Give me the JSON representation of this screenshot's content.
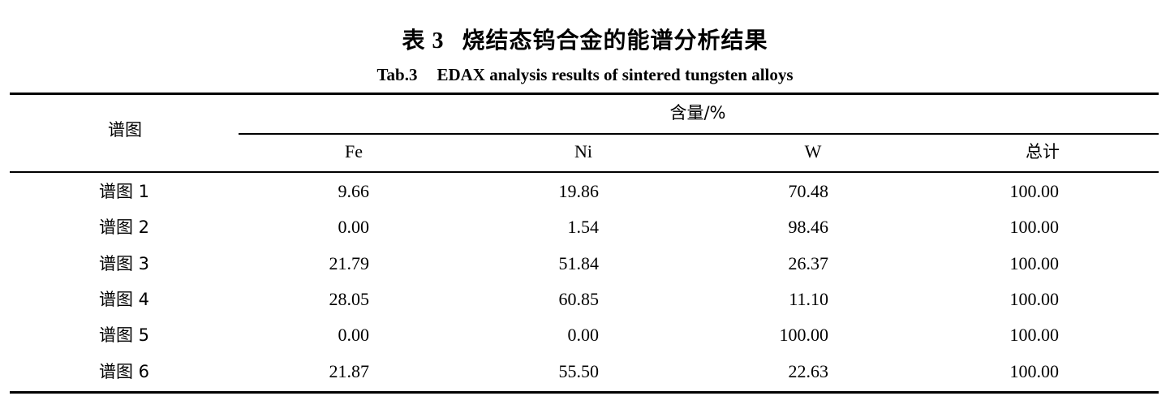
{
  "title": {
    "cn_number": "表 3",
    "cn_text": "烧结态钨合金的能谱分析结果",
    "en_number": "Tab.3",
    "en_text": "EDAX analysis results of sintered tungsten alloys"
  },
  "table": {
    "row_header": "谱图",
    "group_header": "含量/%",
    "columns": [
      "Fe",
      "Ni",
      "W",
      "总计"
    ],
    "rows": [
      {
        "label": "谱图 1",
        "values": [
          "9.66",
          "19.86",
          "70.48",
          "100.00"
        ]
      },
      {
        "label": "谱图 2",
        "values": [
          "0.00",
          "1.54",
          "98.46",
          "100.00"
        ]
      },
      {
        "label": "谱图 3",
        "values": [
          "21.79",
          "51.84",
          "26.37",
          "100.00"
        ]
      },
      {
        "label": "谱图 4",
        "values": [
          "28.05",
          "60.85",
          "11.10",
          "100.00"
        ]
      },
      {
        "label": "谱图 5",
        "values": [
          "0.00",
          "0.00",
          "100.00",
          "100.00"
        ]
      },
      {
        "label": "谱图 6",
        "values": [
          "21.87",
          "55.50",
          "22.63",
          "100.00"
        ]
      }
    ]
  }
}
